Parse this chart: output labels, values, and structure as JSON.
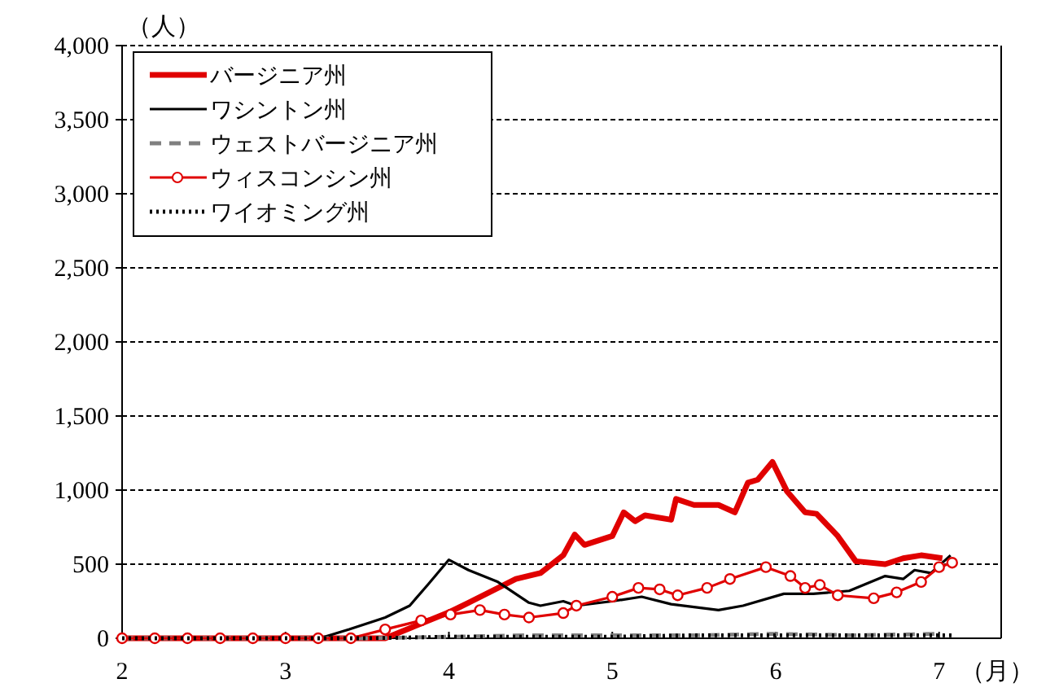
{
  "chart_data": {
    "type": "line",
    "ylabel": "（人）",
    "xlabel": "（月）",
    "xlim": [
      2,
      7.38
    ],
    "xticks": [
      2,
      3,
      4,
      5,
      6,
      7
    ],
    "ylim": [
      0,
      4000
    ],
    "yticks": [
      {
        "value": 0,
        "label": "0"
      },
      {
        "value": 500,
        "label": "500"
      },
      {
        "value": 1000,
        "label": "1,000"
      },
      {
        "value": 1500,
        "label": "1,500"
      },
      {
        "value": 2000,
        "label": "2,000"
      },
      {
        "value": 2500,
        "label": "2,500"
      },
      {
        "value": 3000,
        "label": "3,000"
      },
      {
        "value": 3500,
        "label": "3,500"
      },
      {
        "value": 4000,
        "label": "4,000"
      }
    ],
    "grid": "y",
    "legend": "top left",
    "series": [
      {
        "name": "バージニア州",
        "color": "#e00000",
        "line_style": "solid",
        "marker": "none",
        "x": [
          2,
          3,
          3.61,
          4.01,
          4.12,
          4.41,
          4.56,
          4.7,
          4.77,
          4.83,
          5.0,
          5.07,
          5.14,
          5.2,
          5.36,
          5.39,
          5.5,
          5.65,
          5.75,
          5.83,
          5.89,
          5.98,
          6.07,
          6.18,
          6.25,
          6.38,
          6.49,
          6.67,
          6.78,
          6.89,
          7.02
        ],
        "values": [
          0,
          0,
          0,
          180,
          240,
          400,
          440,
          560,
          700,
          630,
          690,
          850,
          790,
          830,
          800,
          940,
          900,
          900,
          850,
          1050,
          1070,
          1190,
          990,
          850,
          840,
          690,
          520,
          500,
          540,
          560,
          540
        ]
      },
      {
        "name": "ワシントン州",
        "color": "#000000",
        "line_style": "solid",
        "marker": "none",
        "x": [
          2,
          3,
          3.21,
          3.39,
          3.61,
          3.76,
          3.87,
          4.0,
          4.12,
          4.3,
          4.49,
          4.56,
          4.7,
          4.78,
          5.0,
          5.18,
          5.36,
          5.65,
          5.8,
          6.05,
          6.23,
          6.45,
          6.67,
          6.78,
          6.85,
          6.95,
          7.07
        ],
        "values": [
          0,
          0,
          0,
          60,
          140,
          220,
          360,
          530,
          460,
          380,
          240,
          220,
          250,
          220,
          250,
          280,
          230,
          190,
          220,
          300,
          300,
          320,
          420,
          400,
          460,
          440,
          560
        ]
      },
      {
        "name": "ウェストバージニア州",
        "color": "#808080",
        "line_style": "dashed",
        "marker": "none",
        "x": [
          2,
          3.5,
          4,
          4.5,
          5,
          5.5,
          6,
          6.5,
          7
        ],
        "values": [
          0,
          0,
          10,
          20,
          20,
          20,
          30,
          20,
          30
        ]
      },
      {
        "name": "ウィスコンシン州",
        "color": "#e00000",
        "line_style": "solid",
        "marker": "circle",
        "x": [
          2,
          2.2,
          2.4,
          2.6,
          2.8,
          3,
          3.2,
          3.4,
          3.61,
          3.83,
          4.01,
          4.19,
          4.34,
          4.49,
          4.7,
          4.78,
          5.0,
          5.16,
          5.29,
          5.4,
          5.58,
          5.72,
          5.94,
          6.09,
          6.18,
          6.27,
          6.38,
          6.6,
          6.74,
          6.89,
          7.0,
          7.08
        ],
        "values": [
          0,
          0,
          0,
          0,
          0,
          0,
          0,
          0,
          60,
          120,
          160,
          190,
          160,
          140,
          170,
          220,
          280,
          340,
          330,
          290,
          340,
          400,
          480,
          420,
          340,
          360,
          290,
          270,
          310,
          380,
          480,
          510
        ]
      },
      {
        "name": "ワイオミング州",
        "color": "#000000",
        "line_style": "dotted",
        "marker": "none",
        "x": [
          2,
          3.5,
          4,
          4.5,
          5,
          5.5,
          6,
          6.5,
          7.08
        ],
        "values": [
          0,
          0,
          10,
          10,
          10,
          20,
          20,
          20,
          20
        ]
      }
    ]
  }
}
